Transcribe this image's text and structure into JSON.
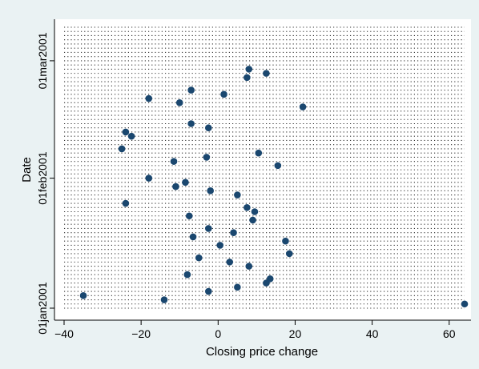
{
  "chart_data": {
    "type": "scatter",
    "title": "",
    "xlabel": "Closing price change",
    "ylabel": "Date",
    "xlim": [
      -40,
      66
    ],
    "ylim": [
      "2001-01-01",
      "2001-03-09"
    ],
    "x_ticks": [
      -40,
      -20,
      0,
      20,
      40,
      60
    ],
    "y_ticks": [
      {
        "date": "2001-01-01",
        "label": "01jan2001"
      },
      {
        "date": "2001-02-01",
        "label": "01feb2001"
      },
      {
        "date": "2001-03-01",
        "label": "01mar2001"
      }
    ],
    "grid": "dotted horizontal lines at each date",
    "marker_color": "#1a476f",
    "background_color": "#eaf2f3",
    "plot_background_color": "#ffffff",
    "points": [
      {
        "date": "2001-01-02",
        "value": 64
      },
      {
        "date": "2001-01-03",
        "value": -14
      },
      {
        "date": "2001-01-04",
        "value": -35
      },
      {
        "date": "2001-01-05",
        "value": -2.5
      },
      {
        "date": "2001-01-06",
        "value": 5
      },
      {
        "date": "2001-01-07",
        "value": 12.5
      },
      {
        "date": "2001-01-08",
        "value": 13.5
      },
      {
        "date": "2001-01-09",
        "value": -8
      },
      {
        "date": "2001-01-11",
        "value": 8
      },
      {
        "date": "2001-01-12",
        "value": 3
      },
      {
        "date": "2001-01-13",
        "value": -5
      },
      {
        "date": "2001-01-14",
        "value": 18.5
      },
      {
        "date": "2001-01-16",
        "value": 0.5
      },
      {
        "date": "2001-01-17",
        "value": 17.5
      },
      {
        "date": "2001-01-18",
        "value": -6.5
      },
      {
        "date": "2001-01-19",
        "value": 4
      },
      {
        "date": "2001-01-20",
        "value": -2.5
      },
      {
        "date": "2001-01-22",
        "value": 9
      },
      {
        "date": "2001-01-23",
        "value": -7.5
      },
      {
        "date": "2001-01-24",
        "value": 9.5
      },
      {
        "date": "2001-01-25",
        "value": 7.5
      },
      {
        "date": "2001-01-26",
        "value": -24
      },
      {
        "date": "2001-01-28",
        "value": 5
      },
      {
        "date": "2001-01-29",
        "value": -2
      },
      {
        "date": "2001-01-30",
        "value": -11
      },
      {
        "date": "2001-01-31",
        "value": -8.5
      },
      {
        "date": "2001-02-01",
        "value": -18
      },
      {
        "date": "2001-02-04",
        "value": 15.5
      },
      {
        "date": "2001-02-05",
        "value": -11.5
      },
      {
        "date": "2001-02-06",
        "value": -3
      },
      {
        "date": "2001-02-07",
        "value": 10.5
      },
      {
        "date": "2001-02-08",
        "value": -25
      },
      {
        "date": "2001-02-11",
        "value": -22.5
      },
      {
        "date": "2001-02-12",
        "value": -24
      },
      {
        "date": "2001-02-13",
        "value": -2.5
      },
      {
        "date": "2001-02-14",
        "value": -7
      },
      {
        "date": "2001-02-18",
        "value": 22
      },
      {
        "date": "2001-02-19",
        "value": -10
      },
      {
        "date": "2001-02-20",
        "value": -18
      },
      {
        "date": "2001-02-21",
        "value": 1.5
      },
      {
        "date": "2001-02-22",
        "value": -7
      },
      {
        "date": "2001-02-25",
        "value": 7.5
      },
      {
        "date": "2001-02-26",
        "value": 12.5
      },
      {
        "date": "2001-02-27",
        "value": 8
      }
    ]
  }
}
